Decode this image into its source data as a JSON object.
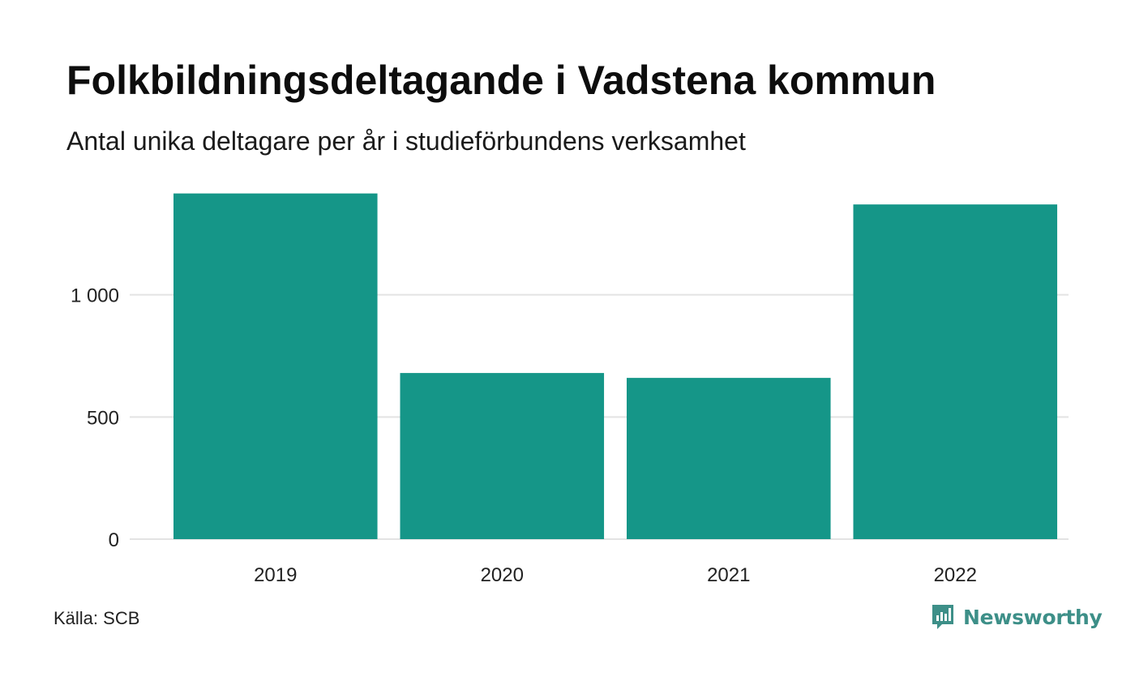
{
  "chart_data": {
    "type": "bar",
    "title": "Folkbildningsdeltagande i Vadstena kommun",
    "subtitle": "Antal unika deltagare per år i studieförbundens verksamhet",
    "categories": [
      "2019",
      "2020",
      "2021",
      "2022"
    ],
    "values": [
      1415,
      680,
      660,
      1370
    ],
    "ylim": [
      0,
      1500
    ],
    "yticks": [
      0,
      500,
      1000
    ],
    "ytick_labels": [
      "0",
      "500",
      "1 000"
    ],
    "grid": true,
    "bar_color": "#159688",
    "grid_color": "#e3e3e3"
  },
  "footer": {
    "source": "Källa: SCB",
    "brand": "Newsworthy",
    "brand_color": "#3d8f88",
    "brand_icon": "newsworthy-chat-chart-icon"
  }
}
